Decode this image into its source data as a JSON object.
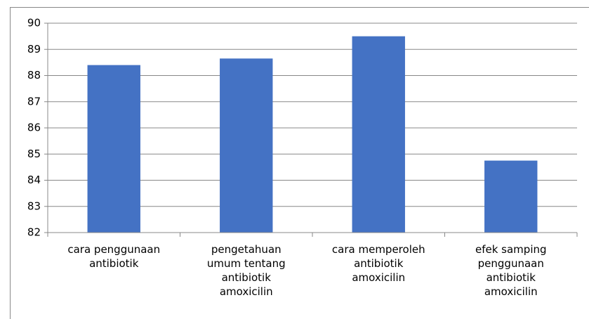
{
  "chart_data": {
    "type": "bar",
    "categories": [
      "cara penggunaan\nantibiotik",
      "pengetahuan\numum tentang\nantibiotik\namoxicilin",
      "cara memperoleh\nantibiotik\namoxicilin",
      "efek samping\npenggunaan\nantibiotik\namoxicilin"
    ],
    "values": [
      88.4,
      88.65,
      89.5,
      84.75
    ],
    "color": "#4472c4",
    "ylim": [
      82,
      90
    ],
    "yticks": [
      82,
      83,
      84,
      85,
      86,
      87,
      88,
      89,
      90
    ],
    "grid": true
  }
}
